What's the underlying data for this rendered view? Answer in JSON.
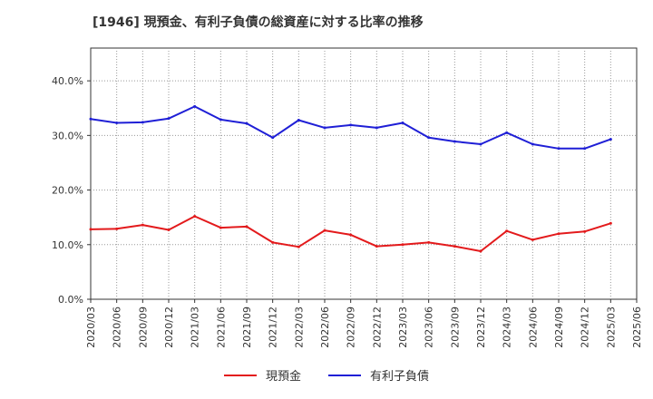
{
  "title": "[1946]  現預金、有利子負債の総資産に対する比率の推移",
  "colors": {
    "cash": "#e31a1c",
    "debt": "#1f1fd6",
    "grid": "#999999",
    "axis": "#333333"
  },
  "chart_data": {
    "type": "line",
    "title": "[1946]  現預金、有利子負債の総資産に対する比率の推移",
    "xlabel": "",
    "ylabel": "",
    "ylim": [
      0,
      46
    ],
    "yticks": [
      0,
      10,
      20,
      30,
      40
    ],
    "ytick_labels": [
      "0.0%",
      "10.0%",
      "20.0%",
      "30.0%",
      "40.0%"
    ],
    "x": [
      "2020/03",
      "2020/06",
      "2020/09",
      "2020/12",
      "2021/03",
      "2021/06",
      "2021/09",
      "2021/12",
      "2022/03",
      "2022/06",
      "2022/09",
      "2022/12",
      "2023/03",
      "2023/06",
      "2023/09",
      "2023/12",
      "2024/03",
      "2024/06",
      "2024/09",
      "2024/12",
      "2025/03",
      "2025/06"
    ],
    "series": [
      {
        "name": "現預金",
        "color": "#e31a1c",
        "values": [
          12.8,
          12.9,
          13.6,
          12.7,
          15.2,
          13.1,
          13.3,
          10.4,
          9.6,
          12.6,
          11.8,
          9.7,
          10.0,
          10.4,
          9.7,
          8.8,
          12.5,
          10.9,
          12.0,
          12.4,
          13.9,
          null
        ]
      },
      {
        "name": "有利子負債",
        "color": "#1f1fd6",
        "values": [
          33.0,
          32.3,
          32.4,
          33.1,
          35.3,
          32.9,
          32.2,
          29.6,
          32.8,
          31.4,
          31.9,
          31.4,
          32.3,
          29.6,
          28.9,
          28.4,
          30.5,
          28.4,
          27.6,
          27.6,
          29.3,
          null
        ]
      }
    ],
    "legend": {
      "position": "bottom-center",
      "entries": [
        "現預金",
        "有利子負債"
      ]
    },
    "grid": true
  }
}
